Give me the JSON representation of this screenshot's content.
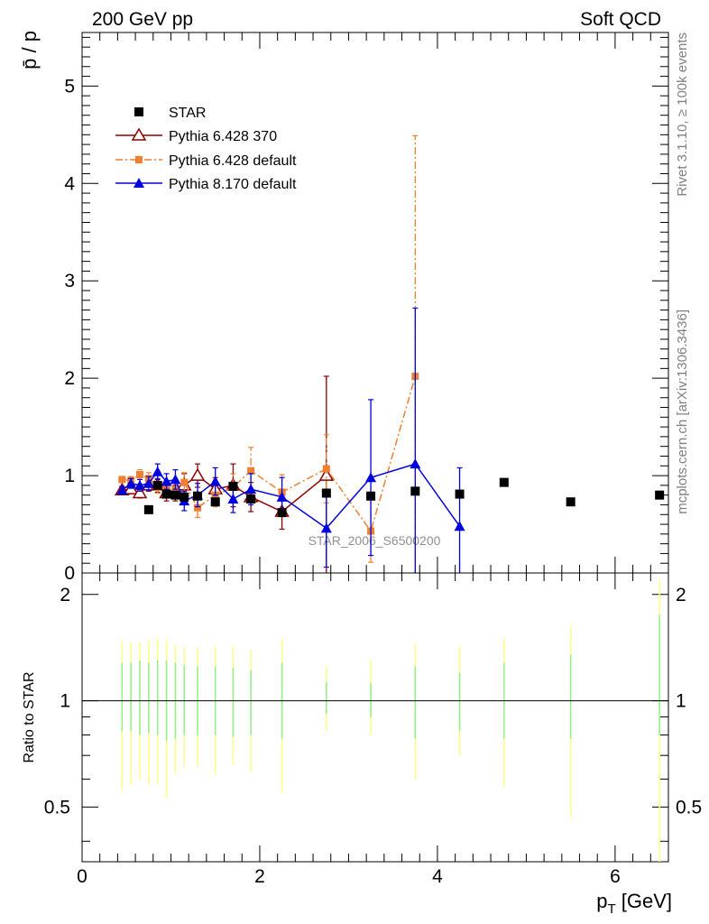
{
  "header": {
    "left": "200 GeV pp",
    "right": "Soft QCD"
  },
  "side": {
    "rivet": "Rivet 3.1.10, ≥ 100k events",
    "mcplots": "mcplots.cern.ch [arXiv:1306.3436]"
  },
  "watermark": "STAR_2006_S6500200",
  "colors": {
    "star": "#000000",
    "p370": "#8b0000",
    "p6def": "#f08030",
    "p8": "#0000dd",
    "band_inner": "#90ee90",
    "band_outer": "#ffff80"
  },
  "chart_data": [
    {
      "type": "scatter",
      "panel": "main",
      "ylabel": "p̄ / p",
      "xlim": [
        0,
        6.6
      ],
      "ylim": [
        0,
        5.55
      ],
      "yticks": [
        0,
        1,
        2,
        3,
        4,
        5
      ],
      "legend_position": "top-left",
      "series": [
        {
          "name": "STAR",
          "style": "black-square",
          "x": [
            0.75,
            0.85,
            0.95,
            1.05,
            1.15,
            1.3,
            1.5,
            1.7,
            1.9,
            2.25,
            2.75,
            3.25,
            3.75,
            4.25,
            4.75,
            5.5,
            6.5
          ],
          "y": [
            0.65,
            0.9,
            0.81,
            0.8,
            0.78,
            0.79,
            0.73,
            0.89,
            0.76,
            0.62,
            0.82,
            0.79,
            0.84,
            0.81,
            0.93,
            0.73,
            0.8
          ]
        },
        {
          "name": "Pythia 6.428 370",
          "style": "open-triangle-line",
          "x": [
            0.45,
            0.55,
            0.65,
            0.75,
            0.85,
            0.95,
            1.05,
            1.15,
            1.3,
            1.5,
            1.7,
            1.9,
            2.25,
            2.75,
            3.25,
            3.75,
            4.25
          ],
          "y": [
            0.85,
            0.86,
            0.82,
            0.9,
            0.9,
            0.82,
            0.82,
            0.9,
            1.0,
            0.86,
            0.9,
            0.78,
            0.63,
            1.0,
            null,
            null,
            null
          ],
          "yerr": [
            0.03,
            0.04,
            0.05,
            0.06,
            0.07,
            0.08,
            0.08,
            0.12,
            0.12,
            0.12,
            0.22,
            0.15,
            0.18,
            1.02,
            null,
            null,
            null
          ]
        },
        {
          "name": "Pythia 6.428 default",
          "style": "square-dashdot",
          "x": [
            0.45,
            0.55,
            0.65,
            0.75,
            0.85,
            0.95,
            1.05,
            1.15,
            1.3,
            1.5,
            1.7,
            1.9,
            2.25,
            2.75,
            3.25,
            3.75
          ],
          "y": [
            0.96,
            0.95,
            1.01,
            0.97,
            0.88,
            0.88,
            0.86,
            0.93,
            0.67,
            0.8,
            0.88,
            1.05,
            0.83,
            1.07,
            0.43,
            2.02
          ],
          "yerr": [
            0.03,
            0.04,
            0.05,
            0.06,
            0.06,
            0.07,
            0.08,
            0.1,
            0.1,
            0.12,
            0.14,
            0.24,
            0.18,
            0.35,
            0.32,
            2.47
          ]
        },
        {
          "name": "Pythia 8.170 default",
          "style": "filled-triangle-line",
          "x": [
            0.45,
            0.55,
            0.65,
            0.75,
            0.85,
            0.95,
            1.05,
            1.15,
            1.3,
            1.5,
            1.7,
            1.9,
            2.25,
            2.75,
            3.25,
            3.75,
            4.25
          ],
          "y": [
            0.85,
            0.92,
            0.9,
            0.92,
            1.04,
            0.94,
            0.96,
            0.74,
            0.8,
            0.94,
            0.76,
            0.86,
            0.78,
            0.46,
            0.98,
            1.12,
            0.48
          ],
          "yerr": [
            0.04,
            0.05,
            0.06,
            0.07,
            0.08,
            0.08,
            0.1,
            0.1,
            0.12,
            0.14,
            0.14,
            0.16,
            0.2,
            0.4,
            0.8,
            1.6,
            0.6
          ]
        }
      ]
    },
    {
      "type": "band",
      "panel": "ratio",
      "ylabel": "Ratio to STAR",
      "xlabel": "p_T [GeV]",
      "xlim": [
        0,
        6.6
      ],
      "ylim": [
        0.35,
        2.3
      ],
      "xticks": [
        0,
        2,
        4,
        6
      ],
      "yticks": [
        0.5,
        1,
        2
      ],
      "reference": 1,
      "x": [
        0.45,
        0.55,
        0.65,
        0.75,
        0.85,
        0.95,
        1.05,
        1.15,
        1.3,
        1.5,
        1.7,
        1.9,
        2.25,
        2.75,
        3.25,
        3.75,
        4.25,
        4.75,
        5.5,
        6.5
      ],
      "stat_lo": [
        0.82,
        0.82,
        0.8,
        0.81,
        0.8,
        0.77,
        0.78,
        0.8,
        0.8,
        0.8,
        0.79,
        0.8,
        0.78,
        0.92,
        0.9,
        0.78,
        0.82,
        0.78,
        0.78,
        0.8
      ],
      "stat_hi": [
        1.28,
        1.28,
        1.3,
        1.28,
        1.3,
        1.3,
        1.28,
        1.26,
        1.25,
        1.25,
        1.24,
        1.22,
        1.28,
        1.13,
        1.12,
        1.25,
        1.2,
        1.28,
        1.35,
        1.75
      ],
      "syst_lo": [
        0.56,
        0.58,
        0.6,
        0.58,
        0.58,
        0.53,
        0.62,
        0.65,
        0.65,
        0.62,
        0.66,
        0.63,
        0.55,
        0.82,
        0.8,
        0.6,
        0.7,
        0.57,
        0.47,
        0.35
      ],
      "syst_hi": [
        1.48,
        1.46,
        1.46,
        1.48,
        1.5,
        1.48,
        1.44,
        1.42,
        1.42,
        1.43,
        1.42,
        1.4,
        1.5,
        1.25,
        1.3,
        1.45,
        1.42,
        1.5,
        1.62,
        2.2
      ]
    }
  ]
}
